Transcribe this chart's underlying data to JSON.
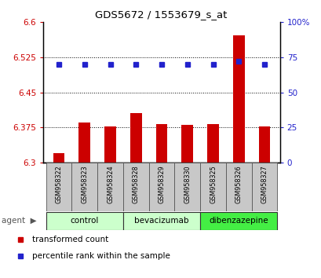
{
  "title": "GDS5672 / 1553679_s_at",
  "samples": [
    "GSM958322",
    "GSM958323",
    "GSM958324",
    "GSM958328",
    "GSM958329",
    "GSM958330",
    "GSM958325",
    "GSM958326",
    "GSM958327"
  ],
  "bar_values": [
    6.321,
    6.385,
    6.378,
    6.406,
    6.383,
    6.381,
    6.382,
    6.572,
    6.377
  ],
  "percentile_values": [
    70,
    70,
    70,
    70,
    70,
    70,
    70,
    72,
    70
  ],
  "bar_bottom": 6.3,
  "ylim_left": [
    6.3,
    6.6
  ],
  "ylim_right": [
    0,
    100
  ],
  "yticks_left": [
    6.3,
    6.375,
    6.45,
    6.525,
    6.6
  ],
  "yticks_right": [
    0,
    25,
    50,
    75,
    100
  ],
  "bar_color": "#cc0000",
  "dot_color": "#2222cc",
  "groups": [
    {
      "label": "control",
      "indices": [
        0,
        1,
        2
      ],
      "color": "#ccffcc"
    },
    {
      "label": "bevacizumab",
      "indices": [
        3,
        4,
        5
      ],
      "color": "#ccffcc"
    },
    {
      "label": "dibenzazepine",
      "indices": [
        6,
        7,
        8
      ],
      "color": "#44ee44"
    }
  ],
  "agent_label": "agent",
  "legend_bar_label": "transformed count",
  "legend_dot_label": "percentile rank within the sample",
  "tick_label_color_left": "#cc0000",
  "tick_label_color_right": "#2222cc",
  "grid_color": "#000000",
  "sample_box_color": "#c8c8c8",
  "bg_color": "#ffffff"
}
